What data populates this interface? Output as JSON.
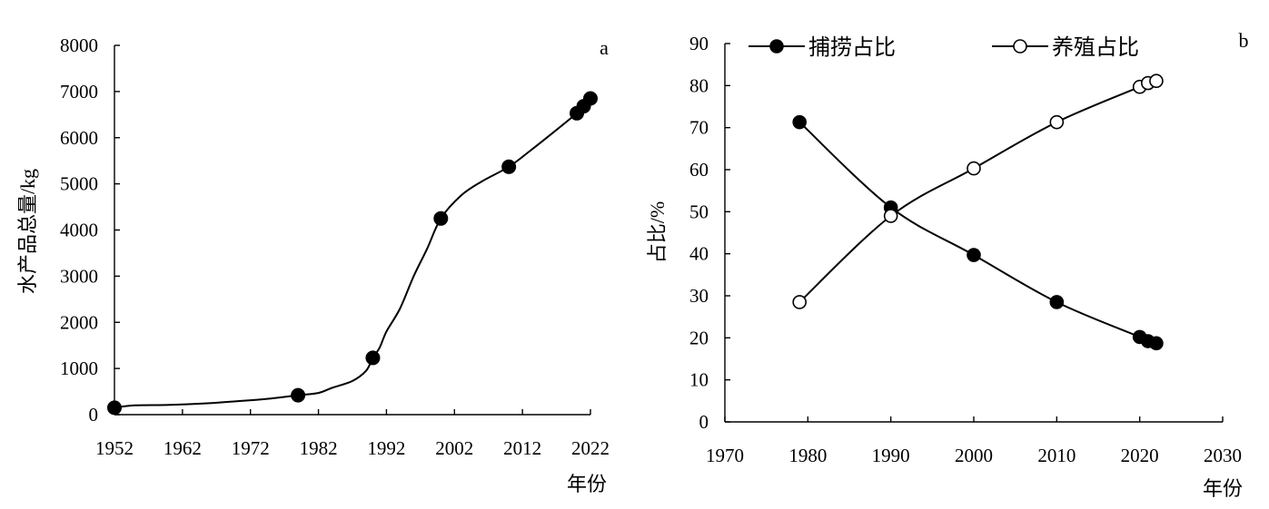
{
  "chart_data": [
    {
      "type": "line",
      "panel_label": "a",
      "ylabel": "水产品总量/kg",
      "xlabel": "年份",
      "xlim": [
        1952,
        2022
      ],
      "ylim": [
        0,
        8000
      ],
      "xticks": [
        1952,
        1962,
        1972,
        1982,
        1992,
        2002,
        2012,
        2022
      ],
      "yticks": [
        0,
        1000,
        2000,
        3000,
        4000,
        5000,
        6000,
        7000,
        8000
      ],
      "series": [
        {
          "curve": [
            [
              1952,
              150
            ],
            [
              1955,
              200
            ],
            [
              1960,
              210
            ],
            [
              1965,
              240
            ],
            [
              1970,
              290
            ],
            [
              1975,
              350
            ],
            [
              1979,
              420
            ],
            [
              1982,
              470
            ],
            [
              1984,
              580
            ],
            [
              1987,
              730
            ],
            [
              1989,
              950
            ],
            [
              1990,
              1230
            ],
            [
              1991,
              1450
            ],
            [
              1992,
              1800
            ],
            [
              1994,
              2300
            ],
            [
              1996,
              3000
            ],
            [
              1998,
              3600
            ],
            [
              2000,
              4250
            ],
            [
              2003,
              4750
            ],
            [
              2006,
              5050
            ],
            [
              2010,
              5370
            ],
            [
              2013,
              5700
            ],
            [
              2016,
              6050
            ],
            [
              2020,
              6530
            ],
            [
              2021,
              6680
            ],
            [
              2022,
              6850
            ]
          ],
          "markers": [
            [
              1952,
              150
            ],
            [
              1979,
              420
            ],
            [
              1990,
              1230
            ],
            [
              2000,
              4250
            ],
            [
              2010,
              5370
            ],
            [
              2020,
              6530
            ],
            [
              2021,
              6680
            ],
            [
              2022,
              6850
            ]
          ]
        }
      ]
    },
    {
      "type": "line",
      "panel_label": "b",
      "ylabel": "占比/%",
      "xlabel": "年份",
      "xlim": [
        1970,
        2030
      ],
      "ylim": [
        0,
        90
      ],
      "xticks": [
        1970,
        1980,
        1990,
        2000,
        2010,
        2020,
        2030
      ],
      "yticks": [
        0,
        10,
        20,
        30,
        40,
        50,
        60,
        70,
        80,
        90
      ],
      "legend_position": "top",
      "series": [
        {
          "name": "捕捞占比",
          "marker": "filled-circle",
          "x": [
            1979,
            1990,
            2000,
            2010,
            2020,
            2021,
            2022
          ],
          "values": [
            71.3,
            51.0,
            39.7,
            28.5,
            20.2,
            19.2,
            18.7
          ]
        },
        {
          "name": "养殖占比",
          "marker": "open-circle",
          "x": [
            1979,
            1990,
            2000,
            2010,
            2020,
            2021,
            2022
          ],
          "values": [
            28.5,
            49.0,
            60.3,
            71.3,
            79.7,
            80.6,
            81.1
          ]
        }
      ]
    }
  ]
}
